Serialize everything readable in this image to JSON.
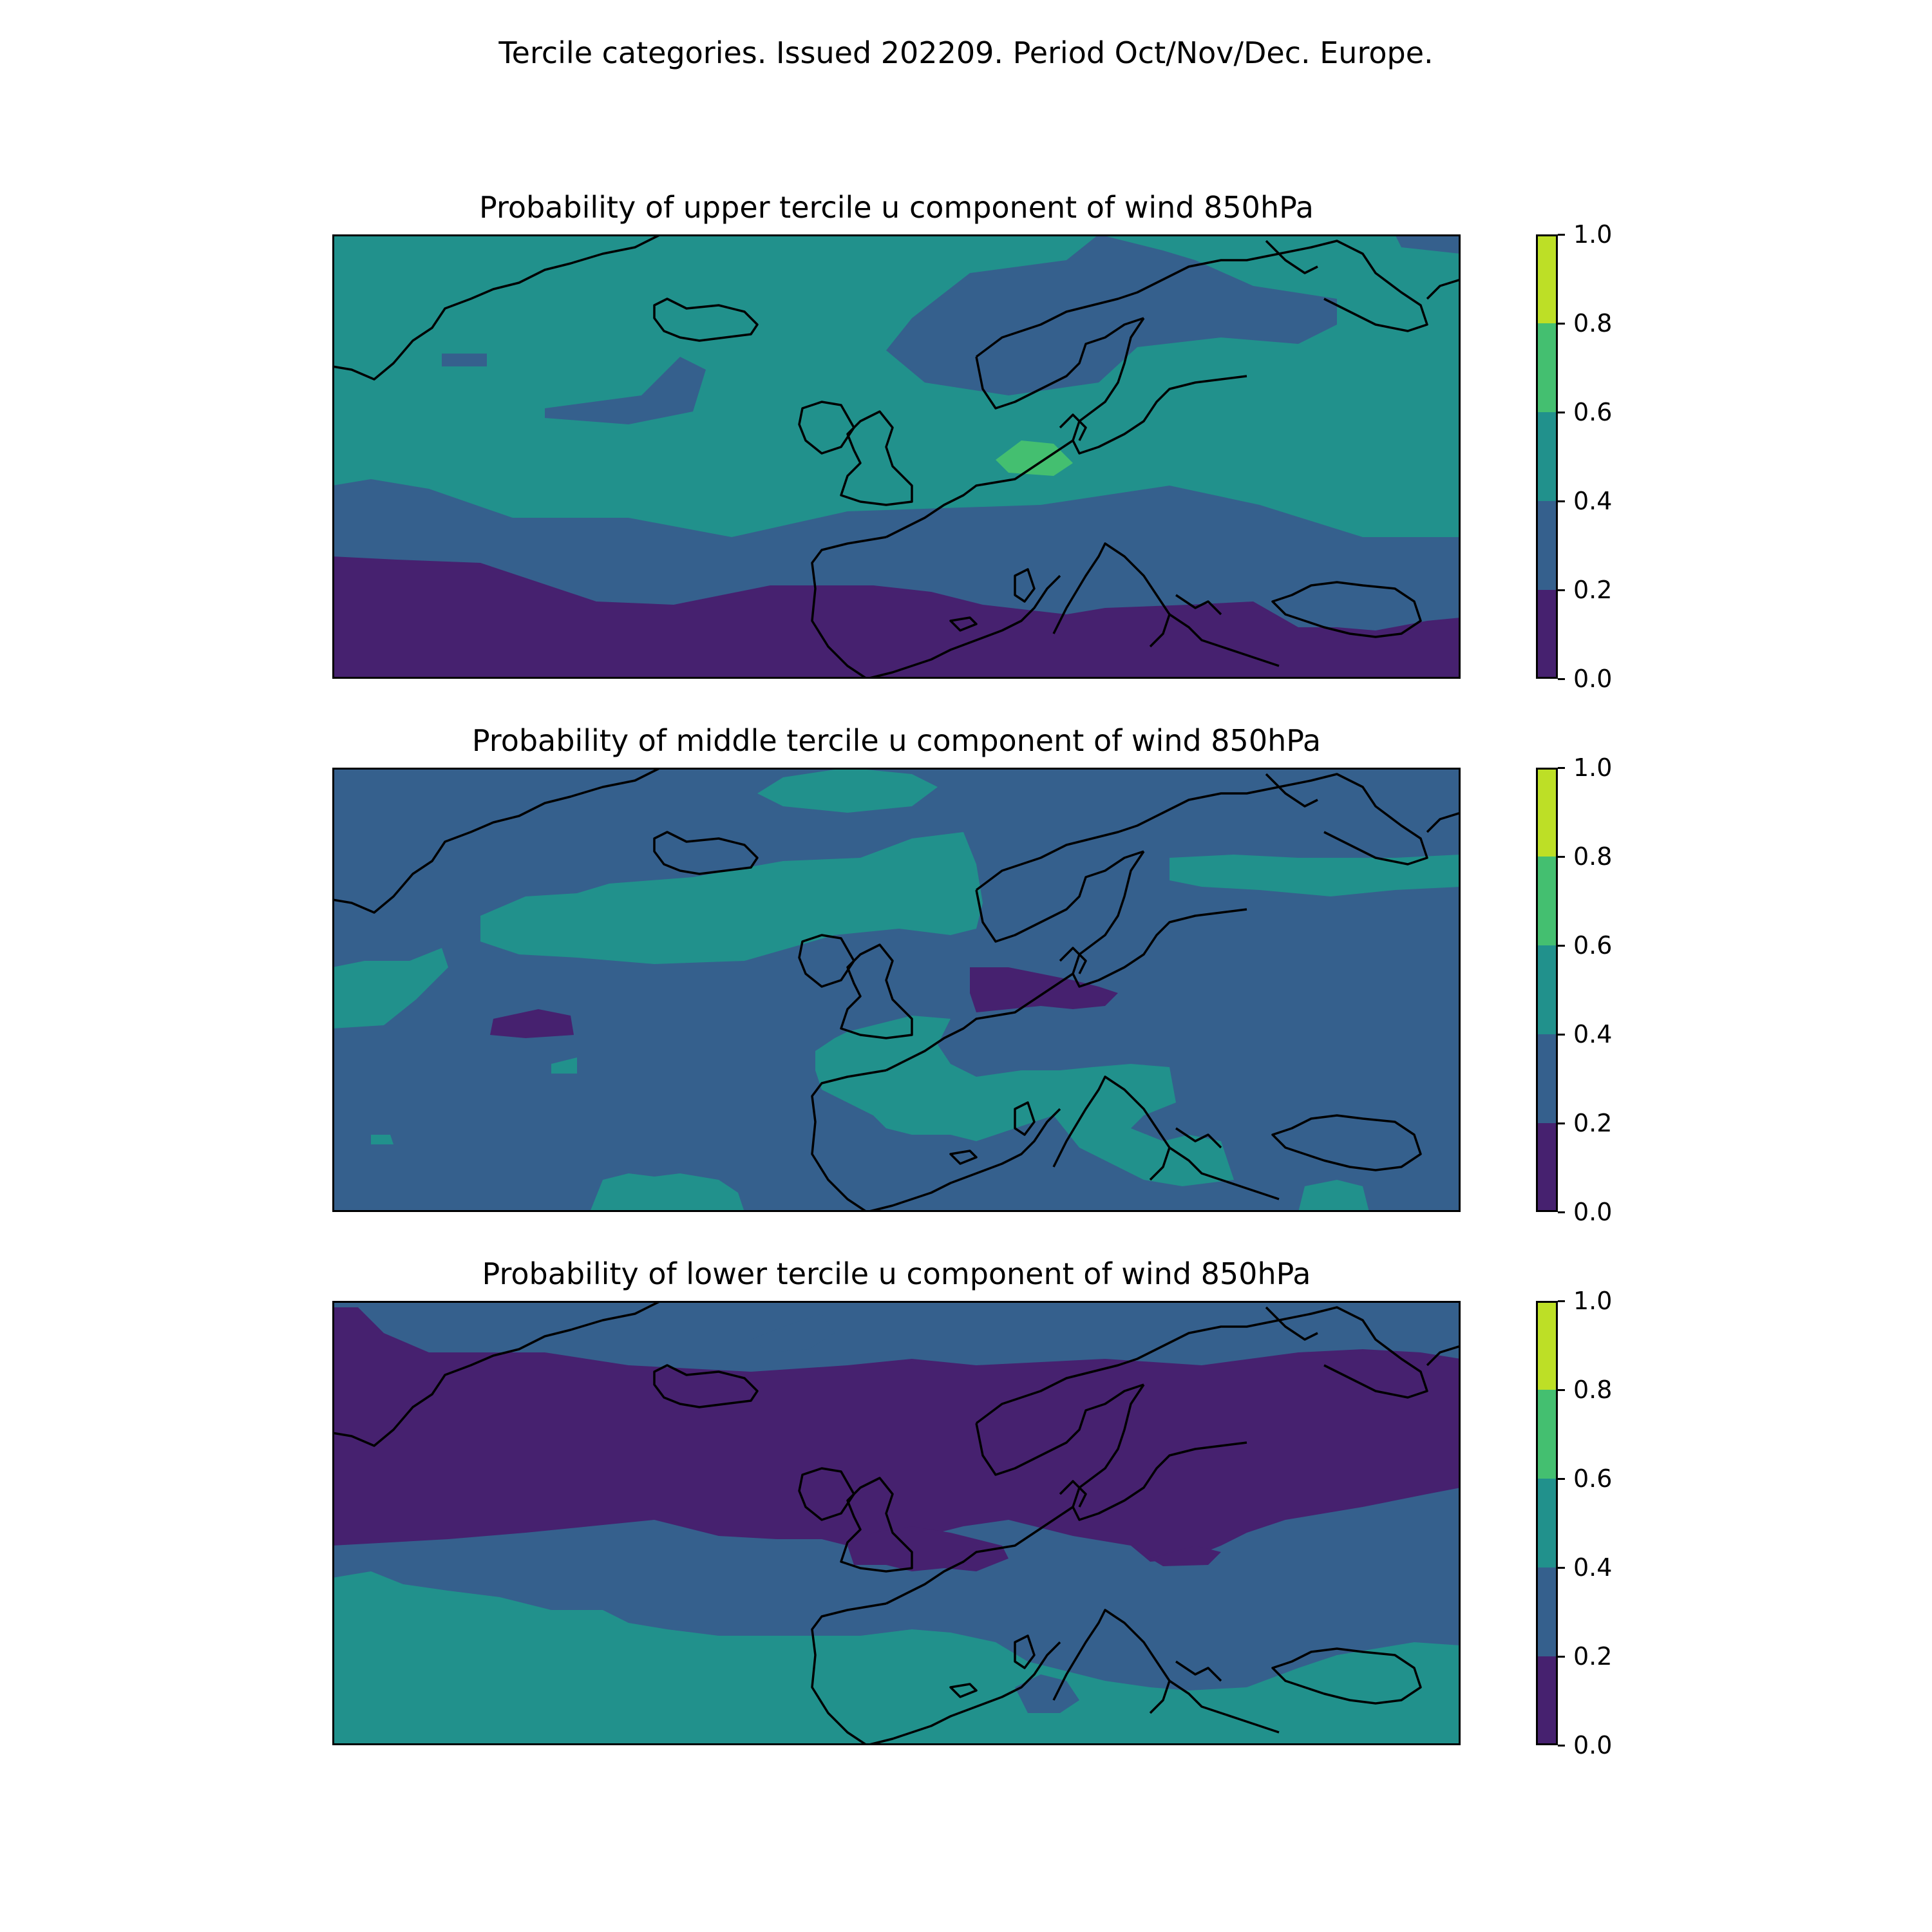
{
  "figure": {
    "suptitle": "Tercile categories. Issued 202209. Period Oct/Nov/Dec. Europe."
  },
  "colorbar": {
    "levels": [
      0.0,
      0.2,
      0.4,
      0.6,
      0.8,
      1.0
    ],
    "tick_labels": [
      "0.0",
      "0.2",
      "0.4",
      "0.6",
      "0.8",
      "1.0"
    ],
    "colors": [
      "#46216f",
      "#35608d",
      "#21918c",
      "#44bf70",
      "#bddf26"
    ]
  },
  "coastline_color": "#000000",
  "panels": [
    {
      "title": "Probability of upper tercile u component of wind 850hPa",
      "summary": "0.4-0.6 over northern Atlantic and Scandinavia; 0.2-0.4 band mid-latitudes; 0.0-0.2 over south (Iberia, Mediterranean); small 0.6-0.8 patch near North Sea"
    },
    {
      "title": "Probability of middle tercile u component of wind 850hPa",
      "summary": "mostly 0.2-0.4; 0.4-0.6 bands near Iceland, east Scandinavia, France and Mediterranean; small 0.0-0.2 patches over North Sea and mid-Atlantic"
    },
    {
      "title": "Probability of lower tercile u component of wind 850hPa",
      "summary": "0.0-0.2 over northern Atlantic and Scandinavia; 0.2-0.4 mid-latitudes; 0.4-0.6 over southern Atlantic and Mediterranean"
    }
  ]
}
